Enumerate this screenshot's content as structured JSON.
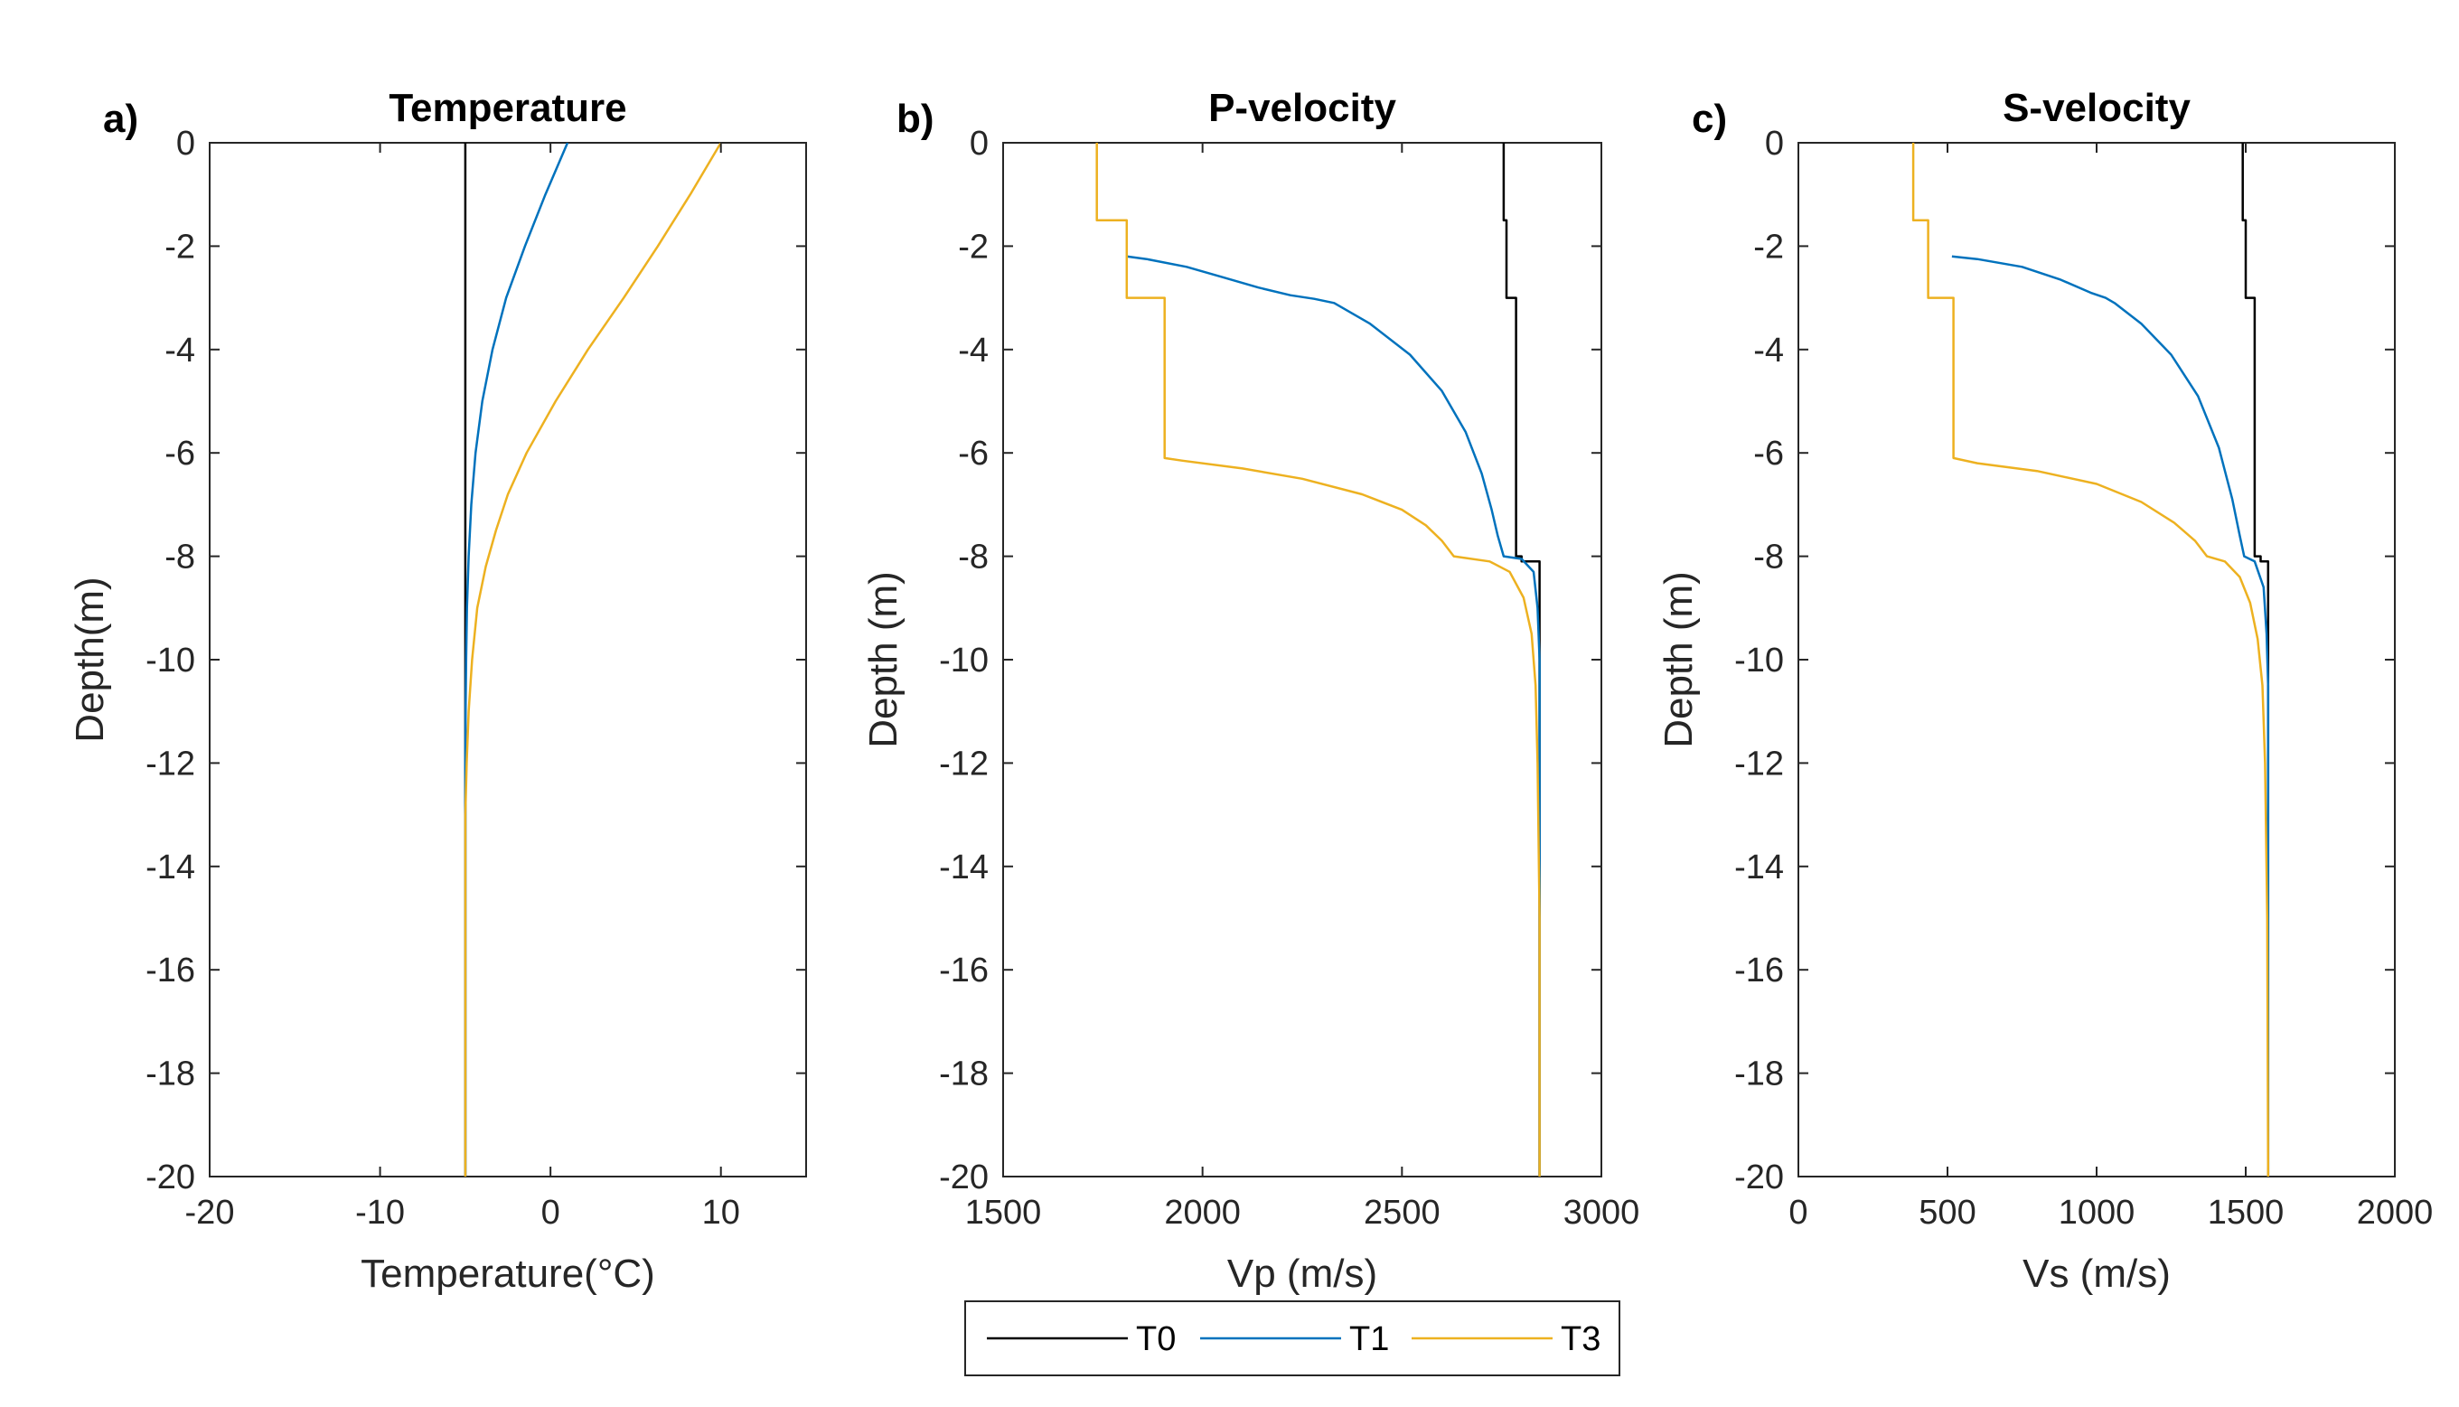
{
  "chart_data": [
    {
      "type": "line",
      "panel_label": "a)",
      "title": "Temperature",
      "xlabel": "Temperature(°C)",
      "ylabel": "Depth(m)",
      "xlim": [
        -20,
        15
      ],
      "ylim": [
        -20,
        0
      ],
      "xticks": [
        -20,
        -10,
        0,
        10
      ],
      "yticks": [
        0,
        -2,
        -4,
        -6,
        -8,
        -10,
        -12,
        -14,
        -16,
        -18,
        -20
      ],
      "grid": false,
      "series": [
        {
          "name": "T0",
          "points": [
            [
              -5,
              0
            ],
            [
              -5,
              -20
            ]
          ]
        },
        {
          "name": "T1",
          "points": [
            [
              1,
              0
            ],
            [
              -0.3,
              -1
            ],
            [
              -1.5,
              -2
            ],
            [
              -2.6,
              -3
            ],
            [
              -3.4,
              -4
            ],
            [
              -4.0,
              -5
            ],
            [
              -4.4,
              -6
            ],
            [
              -4.65,
              -7
            ],
            [
              -4.8,
              -8
            ],
            [
              -4.9,
              -9
            ],
            [
              -4.95,
              -10
            ],
            [
              -4.98,
              -11
            ],
            [
              -5,
              -12
            ],
            [
              -5,
              -20
            ]
          ]
        },
        {
          "name": "T3",
          "points": [
            [
              10,
              0
            ],
            [
              8.2,
              -1
            ],
            [
              6.3,
              -2
            ],
            [
              4.3,
              -3
            ],
            [
              2.2,
              -4
            ],
            [
              0.3,
              -5
            ],
            [
              -1.4,
              -6
            ],
            [
              -2.5,
              -6.8
            ],
            [
              -3.2,
              -7.5
            ],
            [
              -3.8,
              -8.2
            ],
            [
              -4.3,
              -9
            ],
            [
              -4.6,
              -10
            ],
            [
              -4.8,
              -11
            ],
            [
              -4.92,
              -12
            ],
            [
              -5,
              -13
            ],
            [
              -5,
              -20
            ]
          ]
        }
      ]
    },
    {
      "type": "line",
      "panel_label": "b)",
      "title": "P-velocity",
      "xlabel": "Vp (m/s)",
      "ylabel": "Depth (m)",
      "xlim": [
        1500,
        3000
      ],
      "ylim": [
        -20,
        0
      ],
      "xticks": [
        1500,
        2000,
        2500,
        3000
      ],
      "yticks": [
        0,
        -2,
        -4,
        -6,
        -8,
        -10,
        -12,
        -14,
        -16,
        -18,
        -20
      ],
      "grid": false,
      "series": [
        {
          "name": "T0",
          "points": [
            [
              2755,
              0
            ],
            [
              2755,
              -1.5
            ],
            [
              2762,
              -1.5
            ],
            [
              2762,
              -3
            ],
            [
              2786,
              -3
            ],
            [
              2786,
              -8
            ],
            [
              2800,
              -8
            ],
            [
              2800,
              -8.1
            ],
            [
              2845,
              -8.1
            ],
            [
              2845,
              -20
            ]
          ]
        },
        {
          "name": "T1",
          "points": [
            [
              1810,
              -2.2
            ],
            [
              1860,
              -2.25
            ],
            [
              1960,
              -2.4
            ],
            [
              2050,
              -2.6
            ],
            [
              2140,
              -2.8
            ],
            [
              2220,
              -2.95
            ],
            [
              2280,
              -3.02
            ],
            [
              2330,
              -3.1
            ],
            [
              2420,
              -3.5
            ],
            [
              2520,
              -4.1
            ],
            [
              2600,
              -4.8
            ],
            [
              2660,
              -5.6
            ],
            [
              2700,
              -6.4
            ],
            [
              2725,
              -7.1
            ],
            [
              2740,
              -7.6
            ],
            [
              2755,
              -8.0
            ],
            [
              2800,
              -8.05
            ],
            [
              2830,
              -8.3
            ],
            [
              2840,
              -9.0
            ],
            [
              2845,
              -10
            ],
            [
              2845,
              -20
            ]
          ]
        },
        {
          "name": "T3",
          "points": [
            [
              1735,
              0
            ],
            [
              1735,
              -1.5
            ],
            [
              1810,
              -1.5
            ],
            [
              1810,
              -3
            ],
            [
              1905,
              -3
            ],
            [
              1905,
              -6.1
            ],
            [
              1950,
              -6.15
            ],
            [
              2100,
              -6.3
            ],
            [
              2250,
              -6.5
            ],
            [
              2400,
              -6.8
            ],
            [
              2500,
              -7.1
            ],
            [
              2560,
              -7.4
            ],
            [
              2600,
              -7.7
            ],
            [
              2630,
              -8.0
            ],
            [
              2720,
              -8.1
            ],
            [
              2770,
              -8.3
            ],
            [
              2805,
              -8.8
            ],
            [
              2825,
              -9.5
            ],
            [
              2835,
              -10.5
            ],
            [
              2840,
              -12
            ],
            [
              2845,
              -15
            ],
            [
              2845,
              -20
            ]
          ]
        }
      ]
    },
    {
      "type": "line",
      "panel_label": "c)",
      "title": "S-velocity",
      "xlabel": "Vs (m/s)",
      "ylabel": "Depth (m)",
      "xlim": [
        0,
        2000
      ],
      "ylim": [
        -20,
        0
      ],
      "xticks": [
        0,
        500,
        1000,
        1500,
        2000
      ],
      "yticks": [
        0,
        -2,
        -4,
        -6,
        -8,
        -10,
        -12,
        -14,
        -16,
        -18,
        -20
      ],
      "grid": false,
      "series": [
        {
          "name": "T0",
          "points": [
            [
              1490,
              0
            ],
            [
              1490,
              -1.5
            ],
            [
              1500,
              -1.5
            ],
            [
              1500,
              -3
            ],
            [
              1530,
              -3
            ],
            [
              1530,
              -8
            ],
            [
              1550,
              -8
            ],
            [
              1550,
              -8.1
            ],
            [
              1575,
              -8.1
            ],
            [
              1575,
              -20
            ]
          ]
        },
        {
          "name": "T1",
          "points": [
            [
              515,
              -2.2
            ],
            [
              600,
              -2.25
            ],
            [
              750,
              -2.4
            ],
            [
              880,
              -2.65
            ],
            [
              980,
              -2.9
            ],
            [
              1030,
              -3.0
            ],
            [
              1060,
              -3.1
            ],
            [
              1150,
              -3.5
            ],
            [
              1250,
              -4.1
            ],
            [
              1340,
              -4.9
            ],
            [
              1410,
              -5.9
            ],
            [
              1455,
              -6.9
            ],
            [
              1480,
              -7.6
            ],
            [
              1495,
              -8.0
            ],
            [
              1530,
              -8.1
            ],
            [
              1560,
              -8.6
            ],
            [
              1570,
              -9.5
            ],
            [
              1575,
              -10.5
            ],
            [
              1575,
              -20
            ]
          ]
        },
        {
          "name": "T3",
          "points": [
            [
              385,
              0
            ],
            [
              385,
              -1.5
            ],
            [
              435,
              -1.5
            ],
            [
              435,
              -3
            ],
            [
              520,
              -3
            ],
            [
              520,
              -6.1
            ],
            [
              600,
              -6.2
            ],
            [
              800,
              -6.35
            ],
            [
              1000,
              -6.6
            ],
            [
              1150,
              -6.95
            ],
            [
              1260,
              -7.35
            ],
            [
              1330,
              -7.7
            ],
            [
              1370,
              -8.0
            ],
            [
              1430,
              -8.1
            ],
            [
              1480,
              -8.4
            ],
            [
              1515,
              -8.9
            ],
            [
              1540,
              -9.6
            ],
            [
              1556,
              -10.5
            ],
            [
              1565,
              -12
            ],
            [
              1572,
              -15
            ],
            [
              1575,
              -20
            ]
          ]
        }
      ]
    }
  ],
  "legend": {
    "placement": "bottom-center",
    "entries": [
      {
        "name": "T0",
        "label": "T0",
        "color": "#000000"
      },
      {
        "name": "T1",
        "label": "T1",
        "color": "#0072BD"
      },
      {
        "name": "T3",
        "label": "T3",
        "color": "#EDB120"
      }
    ]
  }
}
